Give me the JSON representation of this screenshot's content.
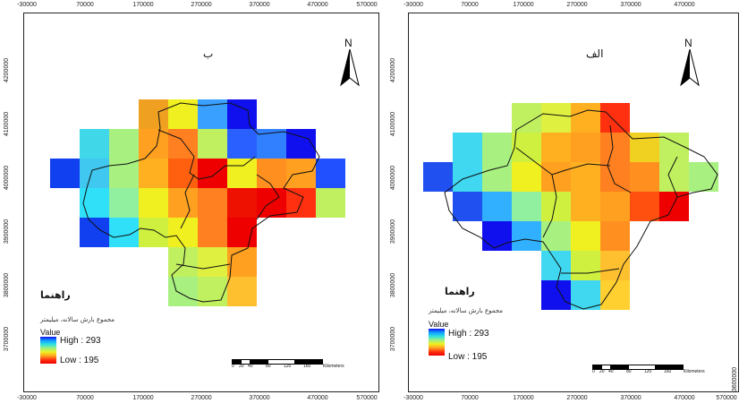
{
  "left_panel": {
    "title": "ب",
    "x_ticks_top": [
      "-30000",
      "70000",
      "170000",
      "270000",
      "370000",
      "470000",
      "570000"
    ],
    "x_ticks_bottom": [
      "-30000",
      "70000",
      "170000",
      "270000",
      "370000",
      "470000",
      "570000"
    ],
    "y_ticks": [
      "4200000",
      "4100000",
      "4000000",
      "3900000",
      "3800000",
      "3700000"
    ],
    "north_label": "N",
    "legend_title": "راهنما",
    "legend_subtitle": "مجموع بارش سالانه، میلیمتر",
    "legend_value_label": "Value",
    "legend_high": "High : 293",
    "legend_low": "Low : 195",
    "scale_labels": [
      "0",
      "20",
      "40",
      "80",
      "120",
      "160",
      "Kilometers"
    ]
  },
  "right_panel": {
    "title": "الف",
    "x_ticks_top": [
      "-30000",
      "70000",
      "170000",
      "270000",
      "370000",
      "470000"
    ],
    "x_ticks_bottom": [
      "-30000",
      "70000",
      "170000",
      "270000",
      "370000",
      "470000",
      "570000"
    ],
    "y_ticks": [
      "4200000",
      "4100000",
      "4000000",
      "3900000",
      "3800000",
      "3700000",
      "3600000"
    ],
    "north_label": "N",
    "legend_title": "راهنما",
    "legend_subtitle": "مجموع بارش سالانه، میلیمتر",
    "legend_value_label": "Value",
    "legend_high": "High : 293",
    "legend_low": "Low : 195",
    "scale_labels": [
      "0",
      "20",
      "40",
      "80",
      "120",
      "160",
      "Kilometers"
    ]
  },
  "colors": {
    "high": "#1010ee",
    "low": "#ee0000",
    "boundary": "#111111"
  }
}
